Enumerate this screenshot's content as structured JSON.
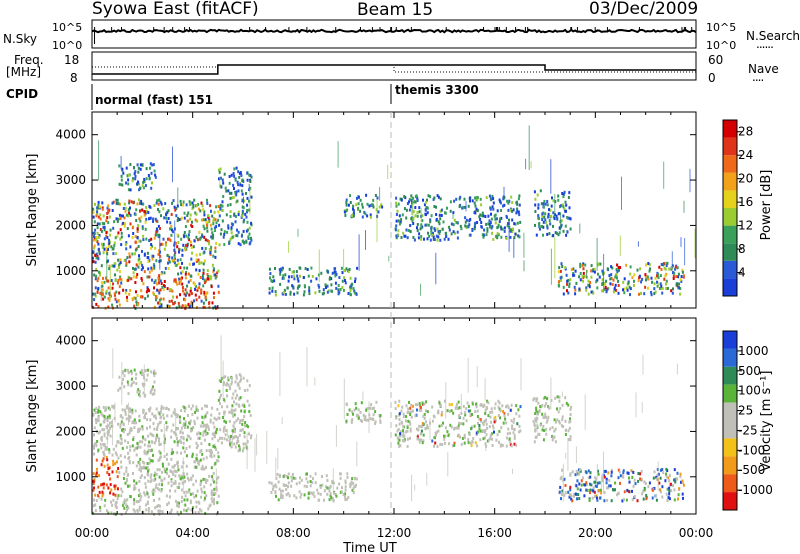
{
  "header": {
    "title": "Syowa East (fitACF)",
    "beam": "Beam 15",
    "date": "03/Dec/2009"
  },
  "noise_panel": {
    "left_label": "N.Sky",
    "right_label": "N.Search",
    "right_legend_line": "......",
    "tick_hi": "10^5",
    "tick_lo": "10^0"
  },
  "freq_panel": {
    "left_label_1": "Freq.",
    "left_label_2": "[MHz]",
    "tick_hi": "18",
    "tick_lo": "8",
    "right_label": "Nave",
    "right_legend_line": "....",
    "right_tick_hi": "60",
    "right_tick_lo": "0"
  },
  "cpid_panel": {
    "label": "CPID",
    "mode1": "normal (fast) 151",
    "mode2": "themis 3300"
  },
  "colors": {
    "power": [
      "#1a3fd8",
      "#2a5bd6",
      "#2e8b57",
      "#3aa05a",
      "#9acd32",
      "#e5d21a",
      "#f2a21a",
      "#ee6a1a",
      "#e0341a",
      "#d40000"
    ],
    "velocity": [
      "#1a3fd8",
      "#2a6ad6",
      "#2e8b57",
      "#5ab43a",
      "#c0c0b8",
      "#c0c0b8",
      "#f2c21a",
      "#f29a1a",
      "#ee5a1a",
      "#e01010"
    ]
  },
  "chart_data": [
    {
      "type": "heatmap",
      "title": "",
      "xlabel": "",
      "ylabel": "Slant Range [km]",
      "xlim": [
        "00:00",
        "24:00"
      ],
      "ylim": [
        180,
        4500
      ],
      "x_ticks": [
        "00:00",
        "04:00",
        "08:00",
        "12:00",
        "16:00",
        "20:00",
        "00:00"
      ],
      "y_ticks": [
        1000,
        2000,
        3000,
        4000
      ],
      "colorbar": {
        "label": "Power [dB]",
        "ticks": [
          4,
          8,
          12,
          16,
          20,
          24,
          28
        ],
        "range": [
          0,
          30
        ]
      },
      "echo_regions": [
        {
          "t_start": 0.0,
          "t_end": 5.0,
          "r_start": 200,
          "r_end": 2600,
          "level": "strong near 700 km"
        },
        {
          "t_start": 1.0,
          "t_end": 2.5,
          "r_start": 2800,
          "r_end": 3400,
          "level": "weak"
        },
        {
          "t_start": 5.0,
          "t_end": 6.3,
          "r_start": 1600,
          "r_end": 3300,
          "level": "moderate"
        },
        {
          "t_start": 7.0,
          "t_end": 10.5,
          "r_start": 500,
          "r_end": 1100,
          "level": "weak"
        },
        {
          "t_start": 10.0,
          "t_end": 11.5,
          "r_start": 2200,
          "r_end": 2700,
          "level": "weak"
        },
        {
          "t_start": 12.0,
          "t_end": 17.0,
          "r_start": 1700,
          "r_end": 2700,
          "level": "moderate"
        },
        {
          "t_start": 17.5,
          "t_end": 19.0,
          "r_start": 1800,
          "r_end": 2800,
          "level": "moderate"
        },
        {
          "t_start": 18.5,
          "t_end": 23.5,
          "r_start": 500,
          "r_end": 1200,
          "level": "strong"
        }
      ]
    },
    {
      "type": "heatmap",
      "title": "",
      "xlabel": "Time UT",
      "ylabel": "Slant Range [km]",
      "xlim": [
        "00:00",
        "24:00"
      ],
      "ylim": [
        180,
        4500
      ],
      "x_ticks": [
        "00:00",
        "04:00",
        "08:00",
        "12:00",
        "16:00",
        "20:00",
        "00:00"
      ],
      "y_ticks": [
        1000,
        2000,
        3000,
        4000
      ],
      "colorbar": {
        "label": "Velocity [m s⁻¹]",
        "ticks": [
          1000,
          500,
          100,
          25,
          -25,
          -100,
          -500,
          -1000
        ]
      },
      "echo_regions": [
        {
          "t_start": 0.0,
          "t_end": 1.0,
          "r_start": 600,
          "r_end": 1500,
          "level": "negative (toward orange/red)"
        },
        {
          "t_start": 0.0,
          "t_end": 6.3,
          "r_start": 500,
          "r_end": 3300,
          "level": "near zero (grey)"
        },
        {
          "t_start": 12.0,
          "t_end": 17.0,
          "r_start": 1700,
          "r_end": 2700,
          "level": "mixed"
        },
        {
          "t_start": 18.5,
          "t_end": 23.5,
          "r_start": 500,
          "r_end": 1400,
          "level": "positive (green/blue) and negative (orange)"
        }
      ]
    }
  ],
  "axes": {
    "x_title": "Time UT",
    "y_title": "Slant Range [km]",
    "power_cb_title": "Power [dB]",
    "velocity_cb_title": "Velocity [m s⁻¹]"
  }
}
